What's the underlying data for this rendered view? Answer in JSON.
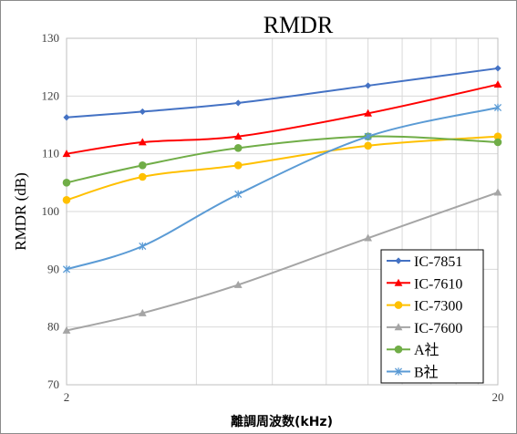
{
  "chart_data": {
    "type": "line",
    "title": "RMDR",
    "xlabel": "離調周波数(kHz)",
    "ylabel": "RMDR (dB)",
    "x_scale": "log",
    "xlim": [
      2,
      20
    ],
    "ylim": [
      70,
      130
    ],
    "x_tick_labels": [
      "2",
      "20"
    ],
    "y_ticks": [
      70,
      80,
      90,
      100,
      110,
      120,
      130
    ],
    "grid": true,
    "legend_position": "bottom-right",
    "x": [
      2,
      3,
      5,
      10,
      20
    ],
    "series": [
      {
        "name": "IC-7851",
        "color": "#4472c4",
        "marker": "diamond",
        "values": [
          116.3,
          117.3,
          118.8,
          121.8,
          124.8
        ]
      },
      {
        "name": "IC-7610",
        "color": "#ff0000",
        "marker": "triangle",
        "values": [
          110.0,
          112.0,
          113.0,
          117.0,
          122.0
        ]
      },
      {
        "name": "IC-7300",
        "color": "#ffc000",
        "marker": "circle",
        "values": [
          102.0,
          106.0,
          108.0,
          111.4,
          113.0
        ]
      },
      {
        "name": "IC-7600",
        "color": "#a5a5a5",
        "marker": "triangle",
        "values": [
          79.4,
          82.4,
          87.3,
          95.4,
          103.3
        ]
      },
      {
        "name": "A社",
        "color": "#70ad47",
        "marker": "circle",
        "values": [
          105.0,
          108.0,
          111.0,
          113.0,
          112.0
        ]
      },
      {
        "name": "B社",
        "color": "#5b9bd5",
        "marker": "star",
        "values": [
          90.0,
          94.0,
          103.0,
          113.0,
          118.0
        ]
      }
    ]
  }
}
